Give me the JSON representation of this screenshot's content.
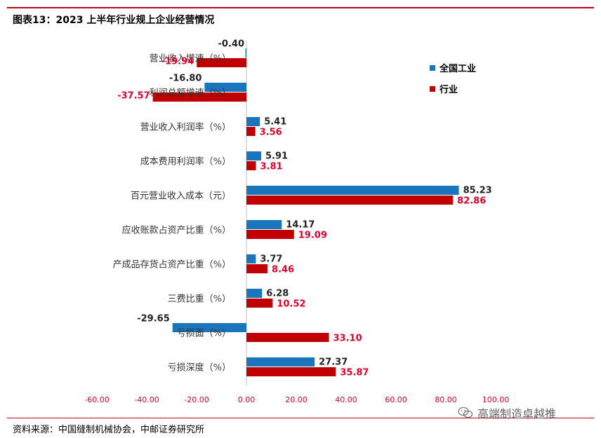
{
  "header": {
    "title": "图表13：2023 上半年行业规上企业经营情况"
  },
  "footer": {
    "source": "资料来源：中国缝制机械协会，中邮证券研究所"
  },
  "watermark": {
    "text": "高端制造卓越推",
    "icon": "wechat-icon"
  },
  "colors": {
    "series1": "#1b75bc",
    "series2": "#c00000",
    "accent": "#b8001e"
  },
  "chart_data": {
    "type": "bar",
    "orientation": "horizontal",
    "categories": [
      "营业收入增速（%）",
      "利润总额增速（%）",
      "营业收入利润率（%）",
      "成本费用利润率（%）",
      "百元营业收入成本（元）",
      "应收账款占资产比重（%）",
      "产成品存货占资产比重（%）",
      "三费比重（%）",
      "亏损面（%）",
      "亏损深度（%）"
    ],
    "series": [
      {
        "name": "全国工业",
        "values": [
          -0.4,
          -16.8,
          5.41,
          5.91,
          85.23,
          14.17,
          3.77,
          6.28,
          -29.65,
          27.37
        ]
      },
      {
        "name": "行业",
        "values": [
          -19.94,
          -37.57,
          3.56,
          3.81,
          82.86,
          19.09,
          8.46,
          10.52,
          33.1,
          35.87
        ]
      }
    ],
    "value_labels": [
      [
        "-0.40",
        "-16.80",
        "5.41",
        "5.91",
        "85.23",
        "14.17",
        "3.77",
        "6.28",
        "-29.65",
        "27.37"
      ],
      [
        "-19.94",
        "-37.57",
        "3.56",
        "3.81",
        "82.86",
        "19.09",
        "8.46",
        "10.52",
        "33.10",
        "35.87"
      ]
    ],
    "xlim": [
      -60,
      100
    ],
    "xticks": [
      -60,
      -40,
      -20,
      0,
      20,
      40,
      60,
      80,
      100
    ],
    "xtick_labels": [
      "-60.00",
      "-40.00",
      "-20.00",
      "0.00",
      "20.00",
      "40.00",
      "60.00",
      "80.00",
      "100.00"
    ],
    "legend": "top-right",
    "grid": false
  }
}
